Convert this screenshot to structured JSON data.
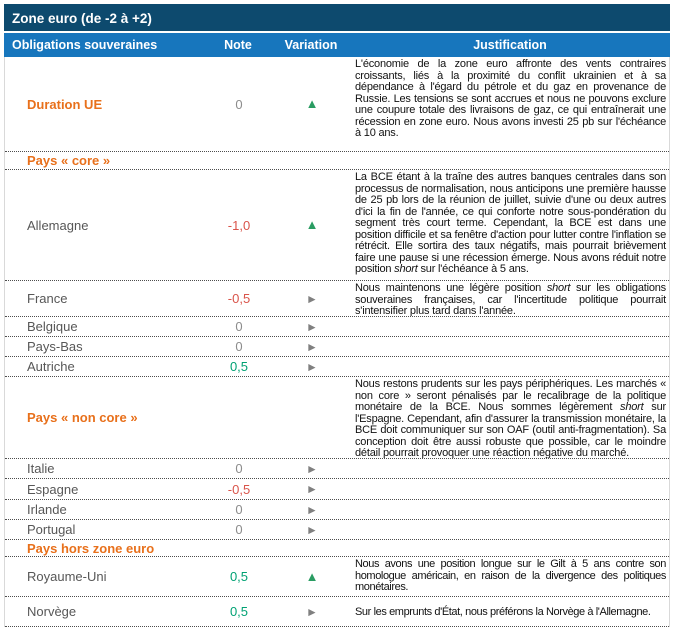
{
  "colors": {
    "title_bar_bg": "#0D4A6E",
    "header_bar_bg": "#1776BD",
    "accent_orange": "#E8701B",
    "label_gray": "#575757",
    "note_neutral_gray": "#8C8C8C",
    "note_negative_red": "#D9544A",
    "note_positive_green": "#00A173",
    "arrow_up_green": "#2A9C62",
    "arrow_flat_gray": "#808080"
  },
  "table": {
    "title": "Zone euro (de -2 à +2)",
    "columns": {
      "assets": "Obligations souveraines",
      "note": "Note",
      "variation": "Variation",
      "justification": "Justification"
    },
    "rows": [
      {
        "label": "Duration UE",
        "note": "0",
        "variation": "up",
        "variation_glyph": "▲",
        "justification": [
          {
            "t": "L'économie de la zone euro affronte des vents contraires croissants, liés à la proximité du conflit ukrainien et à sa dépendance à l'égard du pétrole et du gaz en provenance de Russie. Les tensions se sont accrues et nous ne pouvons exclure une coupure totale des livraisons de gaz, ce qui entraînerait une récession en zone euro. Nous avons investi 25 pb sur l'échéance à 10 ans."
          }
        ]
      },
      {
        "label": "Pays « core »",
        "section": true
      },
      {
        "label": "Allemagne",
        "note": "-1,0",
        "variation": "up",
        "variation_glyph": "▲",
        "justification": [
          {
            "t": "La BCE étant à la traîne des autres banques centrales dans son processus de normalisation, nous anticipons une première hausse de 25 pb lors de la réunion de juillet, suivie d'une ou deux autres d'ici la fin de l'année, ce qui conforte notre sous-pondération du segment très court terme. Cependant, la BCE est dans une position difficile et sa fenêtre d'action pour lutter contre l'inflation se rétrécit. Elle sortira des taux négatifs, mais pourrait brièvement faire une pause si une récession émerge. Nous avons réduit notre position "
          },
          {
            "t": "short",
            "i": true
          },
          {
            "t": " sur l'échéance à 5 ans."
          }
        ]
      },
      {
        "label": "France",
        "note": "-0,5",
        "variation": "flat",
        "variation_glyph": "►",
        "justification": [
          {
            "t": "Nous maintenons une légère position "
          },
          {
            "t": "short",
            "i": true
          },
          {
            "t": " sur les obligations souveraines françaises, car l'incertitude politique pourrait s'intensifier plus tard dans l'année."
          }
        ]
      },
      {
        "label": "Belgique",
        "note": "0",
        "variation": "flat",
        "variation_glyph": "►"
      },
      {
        "label": "Pays-Bas",
        "note": "0",
        "variation": "flat",
        "variation_glyph": "►"
      },
      {
        "label": "Autriche",
        "note": "0,5",
        "variation": "flat",
        "variation_glyph": "►"
      },
      {
        "label": "Pays « non core »",
        "section": true,
        "justification": [
          {
            "t": "Nous restons prudents sur les pays périphériques. Les marchés « non core » seront pénalisés par le recalibrage de la politique monétaire de la BCE. Nous sommes légèrement "
          },
          {
            "t": "short",
            "i": true
          },
          {
            "t": " sur l'Espagne. Cependant, afin d'assurer la transmission monétaire, la BCE doit communiquer sur son OAF (outil anti-fragmentation). Sa conception doit être aussi robuste que possible, car le moindre détail pourrait provoquer une réaction négative du marché."
          }
        ]
      },
      {
        "label": "Italie",
        "note": "0",
        "variation": "flat",
        "variation_glyph": "►"
      },
      {
        "label": "Espagne",
        "note": "-0,5",
        "variation": "flat",
        "variation_glyph": "►"
      },
      {
        "label": "Irlande",
        "note": "0",
        "variation": "flat",
        "variation_glyph": "►"
      },
      {
        "label": "Portugal",
        "note": "0",
        "variation": "flat",
        "variation_glyph": "►"
      },
      {
        "label": "Pays hors zone euro",
        "section": true
      },
      {
        "label": "Royaume-Uni",
        "note": "0,5",
        "variation": "up",
        "variation_glyph": "▲",
        "justification": [
          {
            "t": "Nous avons une position longue sur le Gilt à 5 ans contre son homologue américain, en raison de la divergence des politiques monétaires."
          }
        ]
      },
      {
        "label": "Norvège",
        "note": "0,5",
        "variation": "flat",
        "variation_glyph": "►",
        "justification": [
          {
            "t": "Sur les emprunts d'État, nous préférons la Norvège à l'Allemagne."
          }
        ]
      }
    ]
  }
}
